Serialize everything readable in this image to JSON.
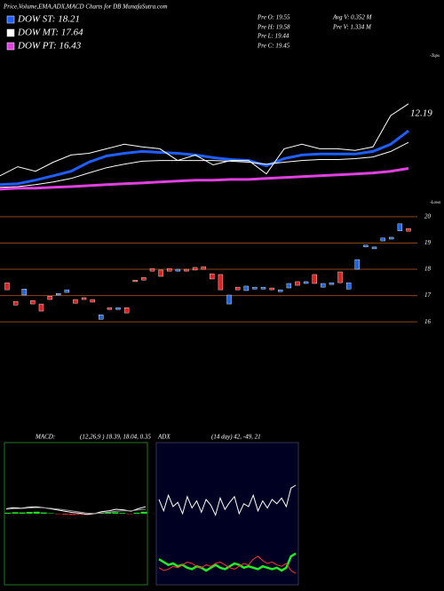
{
  "title": "Price,Volume,EMA,ADX,MACD Charts for DB MunafaSutra.com",
  "info": [
    "Pre O: 19.55",
    "Pre H: 19.58",
    "Pre L: 19.44",
    "Pre C: 19.45",
    "Avg V: 0.352 M",
    "Pre V: 1.334 M"
  ],
  "chart_data": [
    {
      "type": "line",
      "ylim": [
        15.0,
        21.5
      ],
      "annotations": [
        "12.19",
        "-Tops",
        "-Lows"
      ],
      "series": [
        {
          "name": "DOW ST: 18.21",
          "color": "#1f5fff",
          "values": [
            16.01,
            16.05,
            16.2,
            16.38,
            16.57,
            16.95,
            17.21,
            17.32,
            17.4,
            17.36,
            17.32,
            17.25,
            17.14,
            17.06,
            17.02,
            16.8,
            17.1,
            17.25,
            17.29,
            17.29,
            17.29,
            17.4,
            17.7,
            18.26
          ]
        },
        {
          "name": "DOW MT: 17.64",
          "color": "#ffffff",
          "values": [
            15.9,
            15.93,
            16.01,
            16.12,
            16.27,
            16.5,
            16.72,
            16.87,
            16.99,
            17.02,
            17.02,
            17.02,
            17.02,
            16.99,
            16.95,
            16.87,
            16.95,
            17.02,
            17.06,
            17.06,
            17.1,
            17.17,
            17.4,
            17.78
          ]
        },
        {
          "name": "DOW PT: 16.43",
          "color": "#e040e0",
          "values": [
            15.82,
            15.86,
            15.86,
            15.9,
            15.93,
            15.97,
            16.01,
            16.05,
            16.08,
            16.12,
            16.16,
            16.2,
            16.2,
            16.23,
            16.23,
            16.27,
            16.31,
            16.35,
            16.38,
            16.42,
            16.46,
            16.5,
            16.57,
            16.69
          ]
        },
        {
          "color": "#ffffff",
          "values": [
            16.38,
            16.76,
            16.57,
            16.95,
            17.25,
            17.32,
            17.51,
            17.7,
            17.59,
            17.51,
            17.02,
            17.25,
            16.84,
            17.02,
            17.02,
            16.46,
            17.51,
            17.7,
            17.51,
            17.51,
            17.44,
            17.59,
            18.9,
            19.39
          ]
        }
      ]
    },
    {
      "type": "candlestick",
      "ylim": [
        15.6,
        20.3
      ],
      "yticks": [
        16,
        17,
        18,
        19,
        20
      ],
      "up_color": "#2266dd",
      "down_color": "#dd2222",
      "grid_color": "#8b4513",
      "open": [
        17.49,
        16.78,
        17.02,
        16.81,
        16.68,
        16.98,
        17.02,
        17.12,
        16.85,
        16.92,
        16.85,
        16.1,
        16.54,
        16.47,
        16.54,
        17.59,
        17.69,
        18.03,
        17.97,
        18.03,
        17.93,
        18.0,
        18.07,
        18.1,
        17.83,
        17.8,
        16.68,
        17.32,
        17.19,
        17.25,
        17.25,
        17.29,
        17.15,
        17.29,
        17.53,
        17.46,
        17.8,
        17.32,
        17.42,
        17.9,
        17.25,
        18.0,
        18.85,
        18.78,
        19.08,
        19.15,
        19.46,
        19.55
      ],
      "close": [
        17.22,
        16.64,
        17.25,
        16.68,
        16.41,
        16.85,
        17.08,
        17.22,
        16.71,
        16.85,
        16.75,
        16.27,
        16.47,
        16.54,
        16.34,
        17.53,
        17.59,
        17.93,
        17.73,
        17.93,
        18.0,
        17.93,
        17.97,
        18.0,
        17.63,
        17.22,
        17.02,
        17.22,
        17.36,
        17.32,
        17.32,
        17.22,
        17.22,
        17.46,
        17.39,
        17.53,
        17.46,
        17.46,
        17.49,
        17.49,
        17.49,
        18.37,
        18.92,
        18.85,
        19.19,
        19.22,
        19.73,
        19.45
      ]
    },
    {
      "type": "macd",
      "label": "MACD:",
      "params": "(12,26,9 ) 18.39, 18.04, 0.35",
      "background": "#000000",
      "border": "#1f7a1f",
      "ylim": [
        -288,
        288
      ],
      "positive_color": "#22dd22",
      "negative_color": "#dd2222",
      "series": [
        {
          "color": "#ffffff",
          "values": [
            20,
            24,
            22,
            26,
            28,
            25,
            20,
            15,
            10,
            5,
            2,
            -3,
            0,
            8,
            12,
            18,
            15,
            10,
            20,
            28
          ]
        },
        {
          "color": "#999999",
          "values": [
            18,
            20,
            21,
            23,
            24,
            24,
            22,
            19,
            15,
            11,
            7,
            3,
            1,
            3,
            6,
            10,
            12,
            12,
            15,
            18
          ]
        }
      ],
      "histogram": [
        4,
        6,
        5,
        7,
        8,
        5,
        2,
        -2,
        -4,
        -5,
        -4,
        -5,
        -1,
        4,
        5,
        6,
        3,
        -1,
        4,
        8
      ]
    },
    {
      "type": "adx",
      "label": "ADX",
      "params": "(14 day) 42, -49, 21",
      "background": "#000022",
      "border": "#333355",
      "ylim": [
        0,
        100
      ],
      "series": [
        {
          "color": "#ffffff",
          "values": [
            60,
            52,
            63,
            55,
            58,
            50,
            62,
            54,
            59,
            51,
            60,
            56,
            49,
            61,
            53,
            58,
            62,
            50,
            57,
            55,
            63,
            52,
            59,
            54,
            60,
            57,
            61,
            55,
            68,
            70
          ]
        },
        {
          "color": "#22ee22",
          "values": [
            18,
            16,
            14,
            15,
            13,
            14,
            12,
            11,
            13,
            12,
            10,
            12,
            14,
            12,
            11,
            13,
            15,
            14,
            12,
            13,
            12,
            11,
            13,
            12,
            11,
            12,
            10,
            12,
            20,
            22
          ]
        },
        {
          "color": "#ff3333",
          "values": [
            12,
            10,
            11,
            13,
            12,
            14,
            16,
            15,
            13,
            12,
            14,
            13,
            15,
            16,
            14,
            12,
            11,
            13,
            15,
            14,
            18,
            20,
            17,
            15,
            16,
            14,
            13,
            15,
            10,
            8
          ]
        }
      ]
    }
  ]
}
